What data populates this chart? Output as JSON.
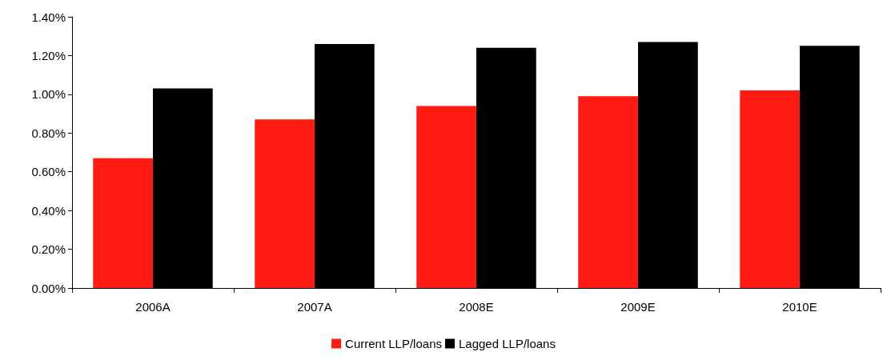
{
  "chart_data": {
    "type": "bar",
    "categories": [
      "2006A",
      "2007A",
      "2008E",
      "2009E",
      "2010E"
    ],
    "series": [
      {
        "name": "Current LLP/loans",
        "color": "#ff1a12",
        "values": [
          0.67,
          0.87,
          0.94,
          0.99,
          1.02
        ]
      },
      {
        "name": "Lagged LLP/loans",
        "color": "#000000",
        "values": [
          1.03,
          1.26,
          1.24,
          1.27,
          1.25
        ]
      }
    ],
    "ylim": [
      0,
      1.4
    ],
    "yticks": [
      {
        "value": 0,
        "label": "0.00%"
      },
      {
        "value": 0.2,
        "label": "0.20%"
      },
      {
        "value": 0.4,
        "label": "0.40%"
      },
      {
        "value": 0.6,
        "label": "0.60%"
      },
      {
        "value": 0.8,
        "label": "0.80%"
      },
      {
        "value": 1.0,
        "label": "1.00%"
      },
      {
        "value": 1.2,
        "label": "1.20%"
      },
      {
        "value": 1.4,
        "label": "1.40%"
      }
    ],
    "grid": false,
    "legend": "bottom"
  }
}
